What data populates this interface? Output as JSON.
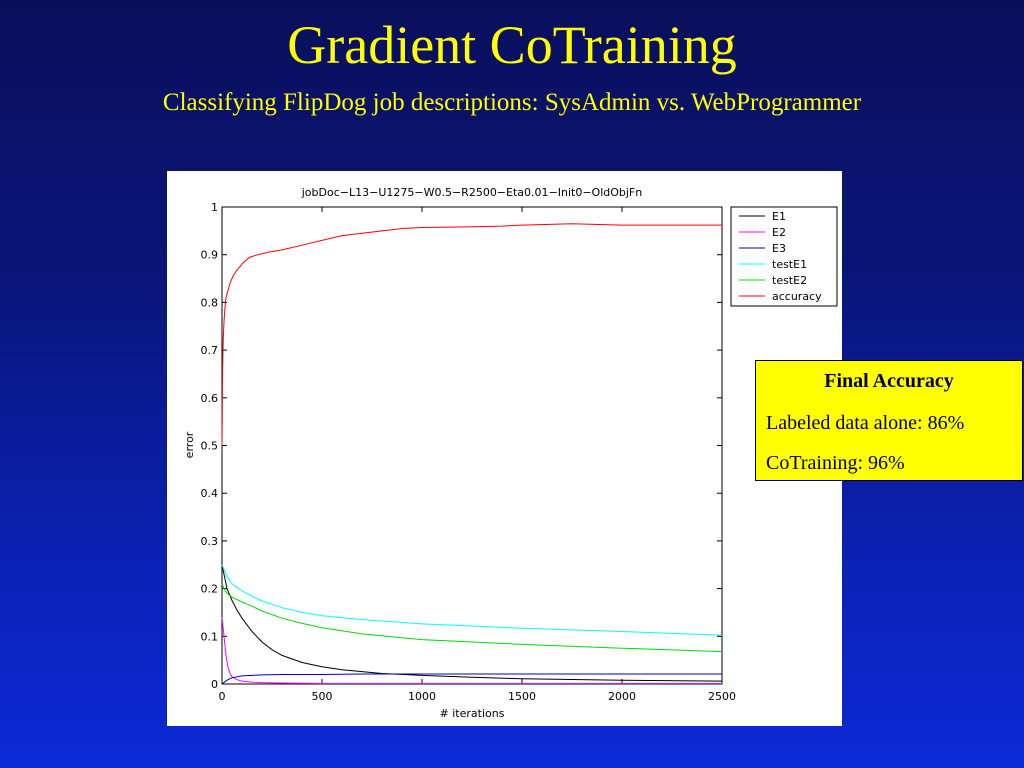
{
  "slide": {
    "title": "Gradient CoTraining",
    "subtitle": "Classifying FlipDog job descriptions: SysAdmin vs. WebProgrammer"
  },
  "info_box": {
    "heading": "Final Accuracy",
    "line1": "Labeled data alone: 86%",
    "line2": "CoTraining: 96%"
  },
  "colors": {
    "background": "#0a1a9c",
    "title_text": "#ffff00",
    "box_fill": "#ffff00"
  },
  "chart_data": {
    "type": "line",
    "title": "jobDoc−L13−U1275−W0.5−R2500−Eta0.01−Init0−OldObjFn",
    "xlabel": "# iterations",
    "ylabel": "error",
    "xlim": [
      0,
      2500
    ],
    "ylim": [
      0,
      1
    ],
    "xticks": [
      0,
      500,
      1000,
      1500,
      2000,
      2500
    ],
    "yticks": [
      0,
      0.1,
      0.2,
      0.3,
      0.4,
      0.5,
      0.6,
      0.7,
      0.8,
      0.9,
      1
    ],
    "ytick_labels": [
      "0",
      "0.1",
      "0.2",
      "0.3",
      "0.4",
      "0.5",
      "0.6",
      "0.7",
      "0.8",
      "0.9",
      "1"
    ],
    "grid": false,
    "legend_position": "top-right",
    "series": [
      {
        "name": "E1",
        "color": "#000000",
        "x": [
          0,
          10,
          25,
          50,
          75,
          100,
          150,
          200,
          250,
          300,
          400,
          500,
          600,
          700,
          800,
          1000,
          1250,
          1500,
          2000,
          2500
        ],
        "y": [
          0.25,
          0.23,
          0.2,
          0.175,
          0.155,
          0.138,
          0.11,
          0.088,
          0.072,
          0.06,
          0.045,
          0.036,
          0.03,
          0.026,
          0.022,
          0.018,
          0.014,
          0.011,
          0.008,
          0.006
        ]
      },
      {
        "name": "E2",
        "color": "#ff00ff",
        "x": [
          0,
          10,
          20,
          30,
          40,
          50,
          75,
          100,
          150,
          200,
          300,
          500,
          1000,
          2500
        ],
        "y": [
          0.14,
          0.1,
          0.06,
          0.035,
          0.022,
          0.015,
          0.009,
          0.006,
          0.004,
          0.003,
          0.002,
          0.001,
          0.001,
          0.001
        ]
      },
      {
        "name": "E3",
        "color": "#0000c0",
        "x": [
          0,
          25,
          50,
          100,
          200,
          300,
          500,
          700,
          900,
          2500
        ],
        "y": [
          0.0,
          0.008,
          0.013,
          0.017,
          0.019,
          0.02,
          0.02,
          0.021,
          0.021,
          0.021
        ]
      },
      {
        "name": "testE1",
        "color": "#00ffff",
        "x": [
          0,
          10,
          25,
          50,
          100,
          150,
          200,
          300,
          400,
          500,
          700,
          1000,
          1500,
          2000,
          2500
        ],
        "y": [
          0.25,
          0.24,
          0.225,
          0.21,
          0.195,
          0.184,
          0.174,
          0.16,
          0.15,
          0.143,
          0.135,
          0.126,
          0.117,
          0.11,
          0.102
        ]
      },
      {
        "name": "testE2",
        "color": "#00dd00",
        "x": [
          0,
          10,
          25,
          50,
          100,
          150,
          200,
          300,
          400,
          500,
          700,
          1000,
          1500,
          2000,
          2500
        ],
        "y": [
          0.21,
          0.2,
          0.19,
          0.182,
          0.172,
          0.163,
          0.153,
          0.138,
          0.127,
          0.118,
          0.105,
          0.093,
          0.083,
          0.075,
          0.068
        ]
      },
      {
        "name": "accuracy",
        "color": "#ff0000",
        "x": [
          0,
          3,
          6,
          10,
          15,
          20,
          30,
          40,
          55,
          70,
          90,
          110,
          140,
          180,
          230,
          300,
          400,
          500,
          600,
          700,
          800,
          900,
          1000,
          1200,
          1400,
          1500,
          1750,
          2000,
          2250,
          2500
        ],
        "y": [
          0.5,
          0.66,
          0.72,
          0.76,
          0.79,
          0.81,
          0.825,
          0.84,
          0.855,
          0.865,
          0.875,
          0.885,
          0.895,
          0.9,
          0.905,
          0.91,
          0.92,
          0.93,
          0.94,
          0.945,
          0.95,
          0.955,
          0.957,
          0.958,
          0.96,
          0.962,
          0.965,
          0.962,
          0.962,
          0.962
        ]
      }
    ]
  }
}
